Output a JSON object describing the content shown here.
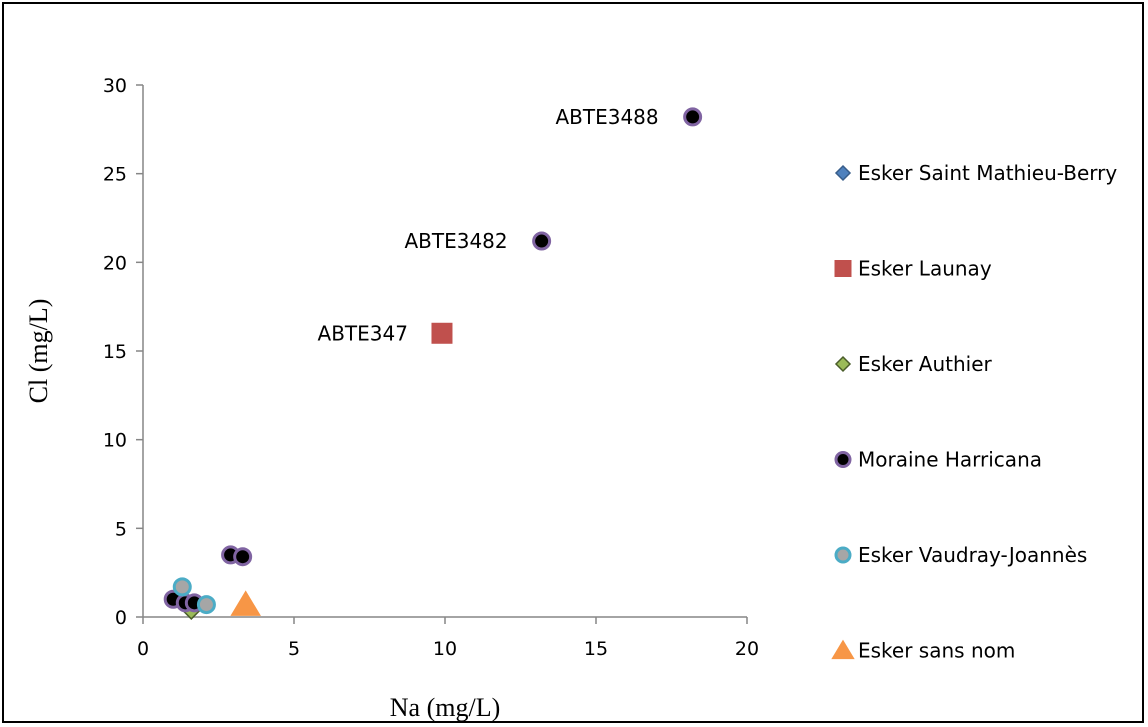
{
  "chart_data": {
    "type": "scatter",
    "title": "",
    "xlabel": "Na (mg/L)",
    "ylabel": "Cl (mg/L)",
    "xlim": [
      0,
      20
    ],
    "ylim": [
      0,
      30
    ],
    "xticks": [
      0,
      5,
      10,
      15,
      20
    ],
    "yticks": [
      0,
      5,
      10,
      15,
      20,
      25,
      30
    ],
    "grid": false,
    "legend_position": "right",
    "series": [
      {
        "name": "Esker Saint Mathieu-Berry",
        "marker": "diamond",
        "color": "#4f81bd",
        "edge": "#385d8a",
        "points": []
      },
      {
        "name": "Esker Launay",
        "marker": "square",
        "color": "#c0504d",
        "edge": "#c0504d",
        "points": [
          [
            9.9,
            16.0
          ]
        ]
      },
      {
        "name": "Esker Authier",
        "marker": "diamond",
        "color": "#9bbb59",
        "edge": "#4a5d2a",
        "points": [
          [
            1.6,
            0.4
          ]
        ]
      },
      {
        "name": "Moraine Harricana",
        "marker": "circle",
        "color": "#000000",
        "edge": "#8064a2",
        "points": [
          [
            18.2,
            28.2
          ],
          [
            13.2,
            21.2
          ],
          [
            2.9,
            3.5
          ],
          [
            3.3,
            3.4
          ],
          [
            1.0,
            1.0
          ],
          [
            1.4,
            0.8
          ],
          [
            1.7,
            0.8
          ]
        ]
      },
      {
        "name": "Esker Vaudray-Joannès",
        "marker": "circle",
        "color": "#a6a6a6",
        "edge": "#4bacc6",
        "points": [
          [
            1.3,
            1.7
          ],
          [
            2.1,
            0.7
          ]
        ]
      },
      {
        "name": "Esker sans nom",
        "marker": "triangle",
        "color": "#f79646",
        "edge": "#f79646",
        "points": [
          [
            3.4,
            0.7
          ]
        ]
      }
    ],
    "annotations": [
      {
        "text": "ABTE3488",
        "x": 18.2,
        "y": 28.2
      },
      {
        "text": "ABTE3482",
        "x": 13.2,
        "y": 21.2
      },
      {
        "text": "ABTE347",
        "x": 9.9,
        "y": 16.0
      }
    ]
  }
}
